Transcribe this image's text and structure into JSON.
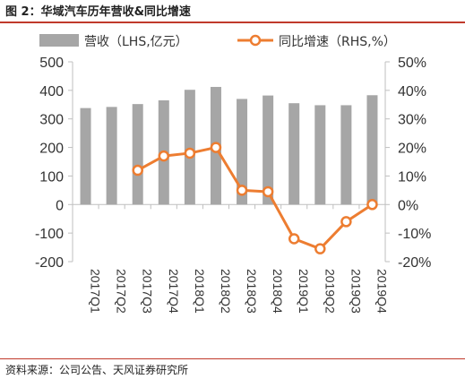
{
  "header": {
    "title": "图 2：华域汽车历年营收&同比增速"
  },
  "footer": {
    "source": "资料来源：公司公告、天风证券研究所"
  },
  "chart_data": {
    "type": "bar",
    "categories": [
      "2017Q1",
      "2017Q2",
      "2017Q3",
      "2017Q4",
      "2018Q1",
      "2018Q2",
      "2018Q3",
      "2018Q4",
      "2019Q1",
      "2019Q2",
      "2019Q3",
      "2019Q4"
    ],
    "series": [
      {
        "name": "营收（LHS,亿元）",
        "type": "bar",
        "axis": "left",
        "color": "#a6a6a6",
        "values": [
          338,
          342,
          352,
          365,
          402,
          412,
          370,
          382,
          355,
          348,
          348,
          383
        ]
      },
      {
        "name": "同比增速（RHS,%）",
        "type": "line",
        "axis": "right",
        "color": "#ed7d31",
        "values": [
          null,
          null,
          12,
          17,
          18,
          20,
          5,
          4.5,
          -12,
          -15.5,
          -6,
          0
        ]
      }
    ],
    "y_left": {
      "min": -200,
      "max": 500,
      "step": 100,
      "ticks": [
        "500",
        "400",
        "300",
        "200",
        "100",
        "0",
        "-100",
        "-200"
      ]
    },
    "y_right": {
      "min": -20,
      "max": 50,
      "step": 10,
      "ticks": [
        "50%",
        "40%",
        "30%",
        "20%",
        "10%",
        "0%",
        "-10%",
        "-20%"
      ]
    },
    "legend_position": "top",
    "grid": false
  }
}
